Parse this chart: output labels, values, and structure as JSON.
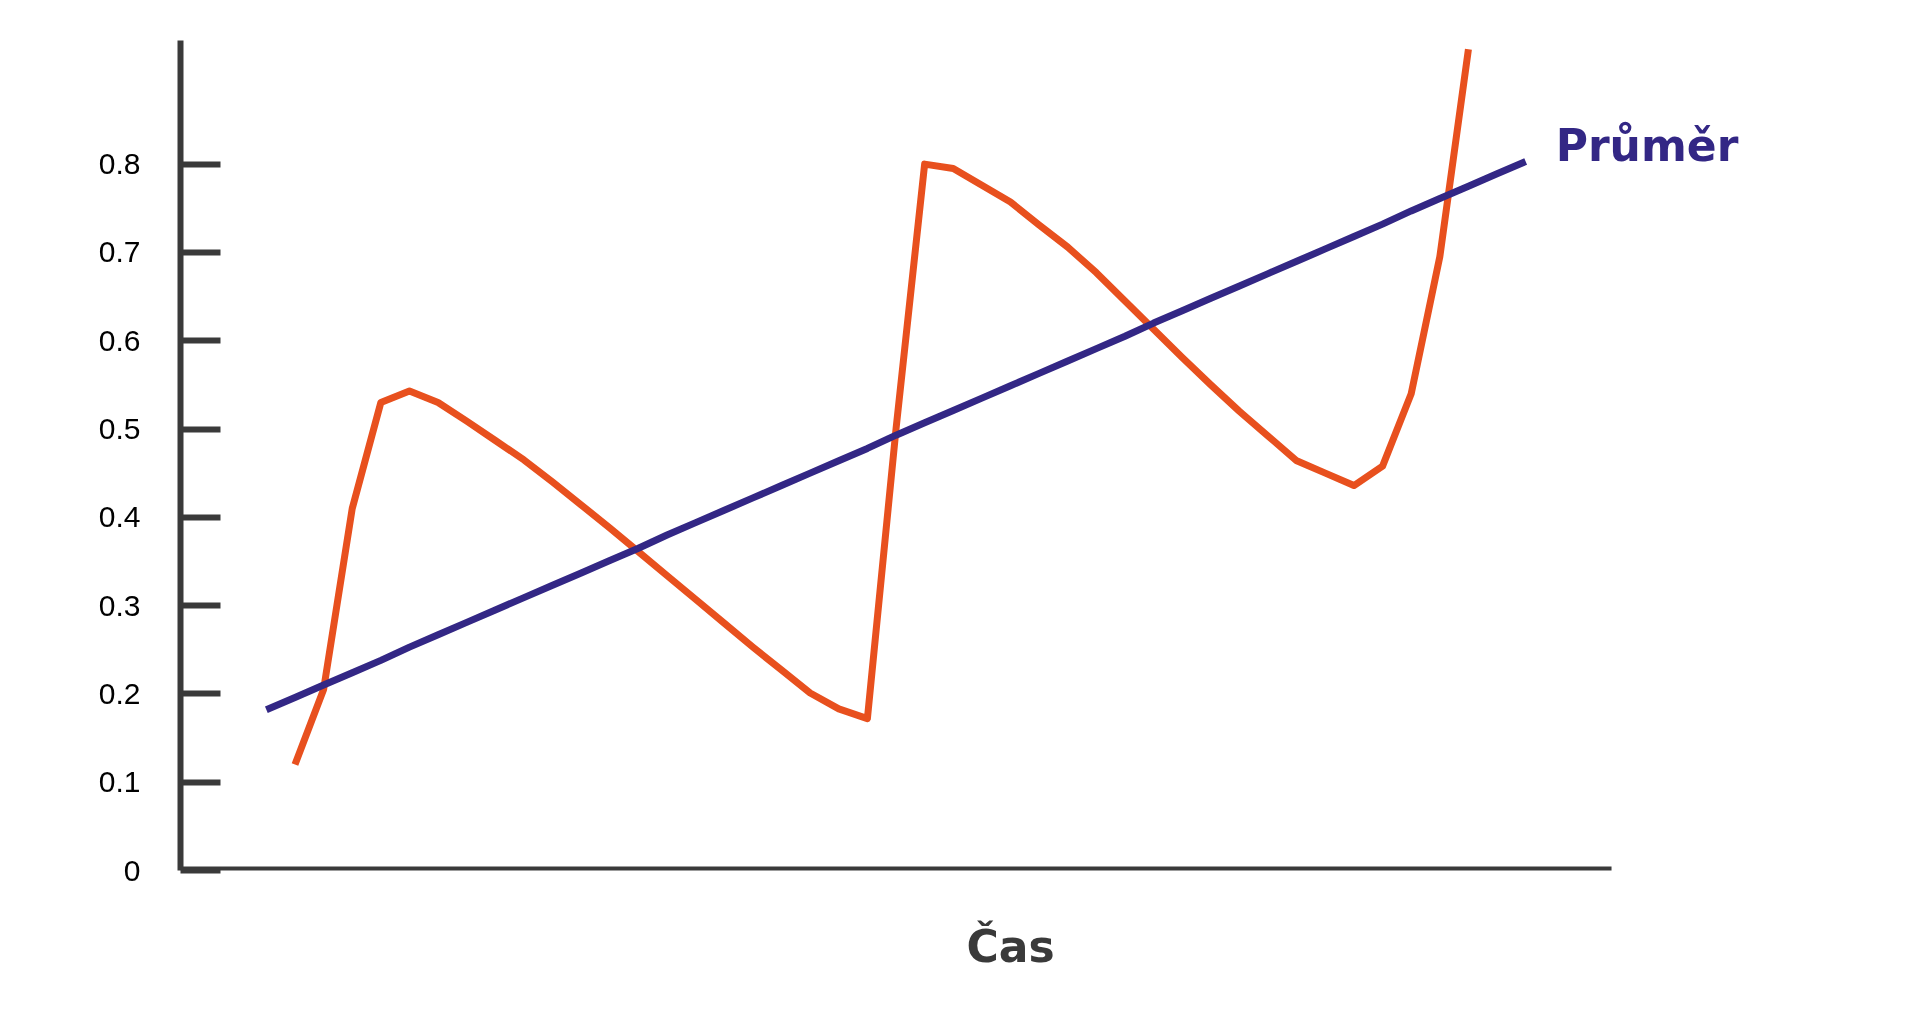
{
  "chart_data": {
    "type": "line",
    "xlabel": "Čas",
    "ylim": [
      0,
      0.94
    ],
    "categories": [
      null,
      null,
      null,
      null,
      null,
      null,
      null,
      null,
      null,
      null,
      null,
      null,
      null,
      null,
      null,
      null,
      null,
      null,
      null,
      null,
      null,
      null,
      null,
      null,
      null,
      null,
      null,
      null,
      null,
      null,
      null,
      null,
      null,
      null,
      null,
      null,
      null,
      null,
      null,
      null,
      null,
      null,
      null,
      null,
      null
    ],
    "yticks": [
      0,
      0.1,
      0.2,
      0.3,
      0.4,
      0.5,
      0.6,
      0.7,
      0.8
    ],
    "tick_labels": "y",
    "grid": false,
    "marker": "none",
    "line_style": "solid",
    "series": [
      {
        "color": "#e8501e",
        "values": [
          null,
          0.12,
          0.205,
          0.41,
          0.53,
          0.543,
          0.53,
          0.509,
          0.487,
          0.465,
          0.44,
          0.414,
          0.388,
          0.361,
          0.334,
          0.307,
          0.28,
          0.253,
          0.227,
          0.201,
          0.183,
          0.172,
          0.5,
          0.8,
          0.795,
          0.776,
          0.757,
          0.731,
          0.706,
          0.677,
          0.645,
          0.613,
          0.581,
          0.55,
          0.52,
          0.492,
          0.464,
          0.45,
          0.436,
          0.458,
          0.54,
          0.695,
          0.93,
          null,
          null
        ]
      },
      {
        "name": "Průměr",
        "color": "#332785",
        "values": [
          0.182,
          0.196,
          0.21,
          0.224,
          0.238,
          0.253,
          0.267,
          0.281,
          0.295,
          0.309,
          0.323,
          0.337,
          0.351,
          0.365,
          0.38,
          0.394,
          0.408,
          0.422,
          0.436,
          0.45,
          0.464,
          0.478,
          0.493,
          0.507,
          0.521,
          0.535,
          0.549,
          0.563,
          0.577,
          0.591,
          0.605,
          0.62,
          0.634,
          0.648,
          0.662,
          0.676,
          0.69,
          0.704,
          0.718,
          0.732,
          0.747,
          0.761,
          0.775,
          0.789,
          0.803
        ]
      }
    ]
  }
}
